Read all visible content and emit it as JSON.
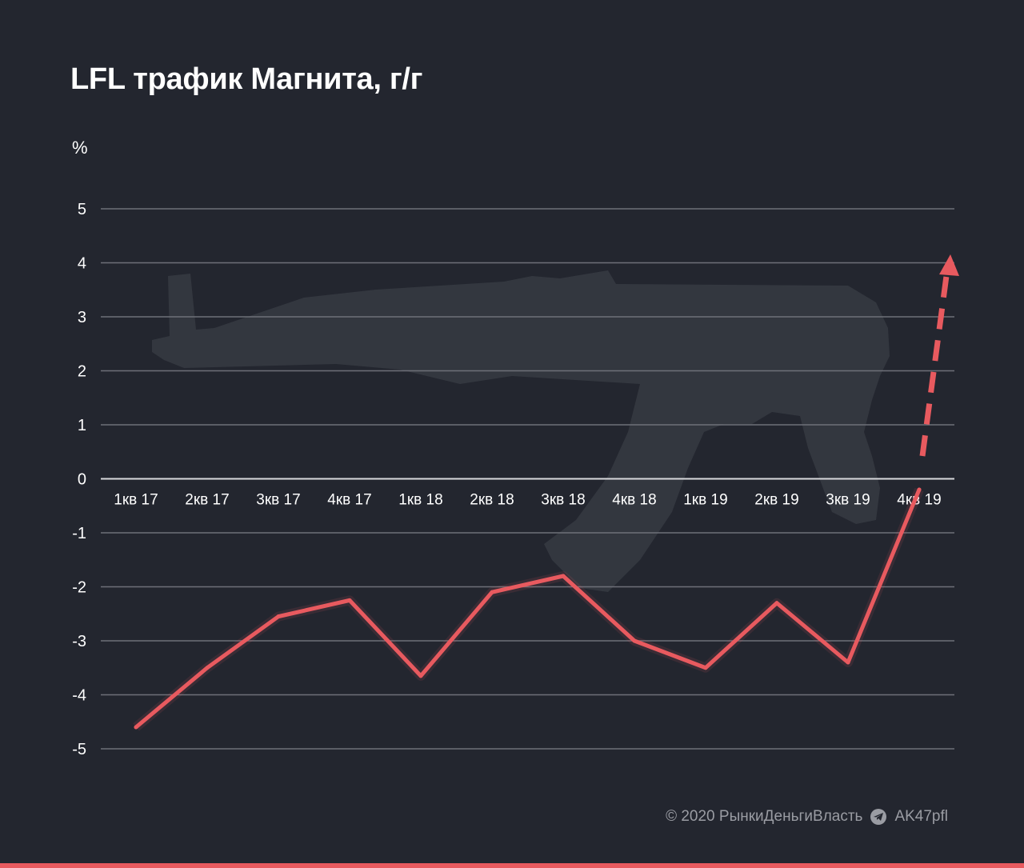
{
  "colors": {
    "background": "#23262f",
    "line": "#e85a5f",
    "grid": "#6e7079",
    "text": "#ffffff",
    "footer": "#9a9ca3"
  },
  "chart_data": {
    "type": "line",
    "title": "LFL трафик Магнита, г/г",
    "ylabel": "%",
    "xlabel": "",
    "ylim": [
      -5,
      5
    ],
    "yticks": [
      "5",
      "4",
      "3",
      "2",
      "1",
      "0",
      "-1",
      "-2",
      "-3",
      "-4",
      "-5"
    ],
    "categories": [
      "1кв 17",
      "2кв 17",
      "3кв 17",
      "4кв 17",
      "1кв 18",
      "2кв 18",
      "3кв 18",
      "4кв 18",
      "1кв 19",
      "2кв 19",
      "3кв 19",
      "4кв 19"
    ],
    "values": [
      -4.6,
      -3.5,
      -2.55,
      -2.25,
      -3.65,
      -2.1,
      -1.8,
      -3.0,
      -3.5,
      -2.3,
      -3.4,
      -0.2
    ],
    "grid": true,
    "annotation": "dashed upward arrow after 4кв 19"
  },
  "footer": {
    "copyright": "© 2020  РынкиДеньгиВласть",
    "channel": "AK47pfl",
    "icon": "telegram-icon"
  }
}
